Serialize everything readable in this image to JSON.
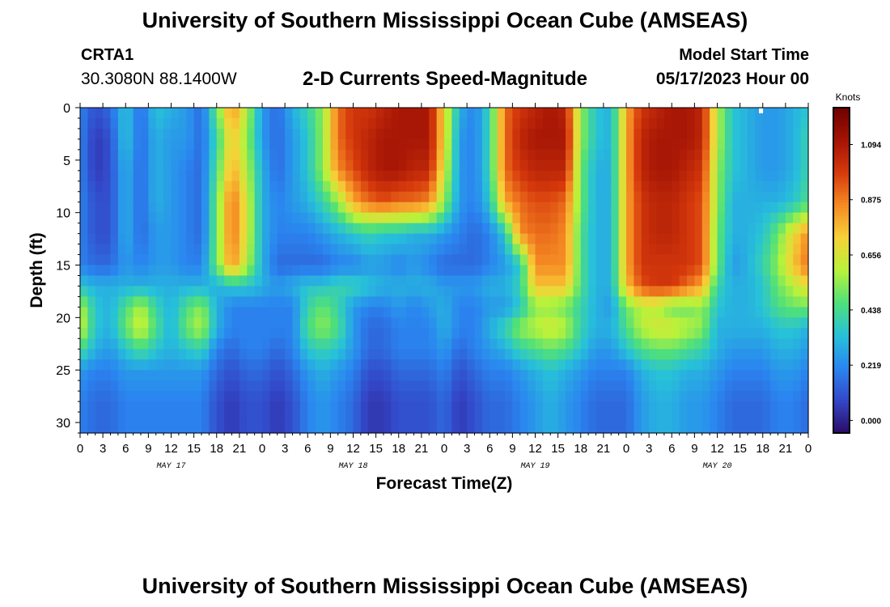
{
  "header": {
    "title": "University of Southern Mississippi Ocean Cube (AMSEAS)",
    "station_id": "CRTA1",
    "station_coords": "30.3080N  88.1400W",
    "plot_title": "2-D Currents Speed-Magnitude",
    "model_start_label": "Model Start Time",
    "model_start_value": "05/17/2023 Hour 00"
  },
  "footer": {
    "title": "University of Southern Mississippi Ocean Cube (AMSEAS)"
  },
  "chart_data": {
    "type": "heatmap",
    "title": "2-D Currents Speed-Magnitude",
    "xlabel": "Forecast Time(Z)",
    "ylabel": "Depth (ft)",
    "x_tick_labels": [
      "0",
      "3",
      "6",
      "9",
      "12",
      "15",
      "18",
      "21",
      "0",
      "3",
      "6",
      "9",
      "12",
      "15",
      "18",
      "21",
      "0",
      "3",
      "6",
      "9",
      "12",
      "15",
      "18",
      "21",
      "0",
      "3",
      "6",
      "9",
      "12",
      "15",
      "18",
      "21",
      "0"
    ],
    "x_day_labels": [
      "MAY 17",
      "MAY 18",
      "MAY 19",
      "MAY 20"
    ],
    "xlim_hours": [
      0,
      96
    ],
    "ylim": [
      0,
      31
    ],
    "y_ticks": [
      0,
      5,
      10,
      15,
      20,
      25,
      30
    ],
    "y_inverted": true,
    "colorbar": {
      "label": "Knots",
      "ticks": [
        "1.094",
        "0.875",
        "0.656",
        "0.438",
        "0.219",
        "0.000"
      ],
      "tick_values": [
        1.094,
        0.875,
        0.656,
        0.438,
        0.219,
        0.0
      ],
      "range": [
        -0.05,
        1.24
      ],
      "colors": [
        "#2a0c66",
        "#3347c8",
        "#2a86f0",
        "#27c1d9",
        "#4fe07a",
        "#b8f23a",
        "#f6d238",
        "#f58a24",
        "#d63a0c",
        "#a41405",
        "#6e0000"
      ]
    },
    "depths_ft": [
      0,
      3,
      6,
      9,
      12,
      15,
      17,
      19,
      21,
      23,
      25,
      28,
      31
    ],
    "times_hours": [
      0,
      2,
      4,
      6,
      8,
      10,
      12,
      14,
      16,
      18,
      20,
      22,
      24,
      26,
      28,
      30,
      32,
      34,
      36,
      38,
      40,
      42,
      44,
      46,
      48,
      50,
      52,
      54,
      56,
      58,
      60,
      62,
      64,
      66,
      68,
      70,
      72,
      74,
      76,
      78,
      80,
      82,
      84,
      86,
      88,
      90,
      92,
      94,
      96
    ],
    "speed_knots": [
      [
        0.2,
        0.1,
        0.15,
        0.35,
        0.15,
        0.35,
        0.3,
        0.25,
        0.15,
        0.5,
        0.85,
        0.6,
        0.25,
        0.15,
        0.3,
        0.4,
        0.55,
        0.9,
        1.0,
        1.0,
        1.05,
        1.1,
        1.1,
        1.1,
        0.7,
        0.3,
        0.2,
        0.4,
        0.9,
        1.0,
        1.05,
        1.1,
        1.05,
        0.55,
        0.35,
        0.3,
        0.8,
        1.0,
        1.05,
        1.1,
        1.1,
        1.05,
        0.6,
        0.35,
        0.3,
        0.25,
        0.25,
        0.3,
        0.35
      ],
      [
        0.2,
        0.05,
        0.1,
        0.35,
        0.15,
        0.3,
        0.25,
        0.25,
        0.15,
        0.4,
        0.75,
        0.55,
        0.25,
        0.15,
        0.25,
        0.35,
        0.55,
        0.9,
        1.0,
        1.05,
        1.1,
        1.1,
        1.1,
        1.1,
        0.7,
        0.25,
        0.2,
        0.4,
        0.9,
        1.05,
        1.1,
        1.1,
        1.1,
        0.55,
        0.35,
        0.3,
        0.8,
        1.05,
        1.1,
        1.1,
        1.1,
        1.05,
        0.6,
        0.35,
        0.3,
        0.25,
        0.25,
        0.3,
        0.4
      ],
      [
        0.2,
        0.05,
        0.1,
        0.3,
        0.15,
        0.3,
        0.25,
        0.2,
        0.15,
        0.45,
        0.8,
        0.6,
        0.3,
        0.15,
        0.25,
        0.35,
        0.55,
        0.85,
        0.95,
        1.05,
        1.1,
        1.1,
        1.05,
        1.05,
        0.65,
        0.25,
        0.2,
        0.4,
        0.9,
        1.0,
        1.05,
        1.05,
        1.05,
        0.5,
        0.3,
        0.3,
        0.8,
        1.05,
        1.1,
        1.1,
        1.05,
        1.0,
        0.55,
        0.35,
        0.3,
        0.25,
        0.25,
        0.3,
        0.4
      ],
      [
        0.2,
        0.1,
        0.1,
        0.3,
        0.15,
        0.3,
        0.25,
        0.2,
        0.15,
        0.5,
        0.9,
        0.65,
        0.3,
        0.2,
        0.25,
        0.3,
        0.4,
        0.55,
        0.8,
        0.9,
        0.95,
        0.9,
        0.9,
        0.85,
        0.55,
        0.25,
        0.2,
        0.35,
        0.8,
        0.9,
        0.95,
        0.95,
        0.9,
        0.5,
        0.3,
        0.3,
        0.8,
        1.0,
        1.05,
        1.05,
        1.0,
        0.95,
        0.55,
        0.3,
        0.3,
        0.3,
        0.3,
        0.35,
        0.45
      ],
      [
        0.2,
        0.1,
        0.1,
        0.3,
        0.15,
        0.25,
        0.25,
        0.2,
        0.15,
        0.5,
        0.9,
        0.65,
        0.3,
        0.2,
        0.2,
        0.2,
        0.25,
        0.3,
        0.35,
        0.4,
        0.35,
        0.35,
        0.3,
        0.3,
        0.25,
        0.2,
        0.15,
        0.2,
        0.35,
        0.85,
        0.9,
        0.9,
        0.85,
        0.45,
        0.3,
        0.3,
        0.8,
        1.0,
        1.05,
        1.05,
        1.0,
        0.95,
        0.5,
        0.3,
        0.3,
        0.35,
        0.5,
        0.7,
        0.85
      ],
      [
        0.2,
        0.15,
        0.15,
        0.25,
        0.2,
        0.25,
        0.25,
        0.2,
        0.2,
        0.5,
        0.85,
        0.6,
        0.3,
        0.15,
        0.15,
        0.15,
        0.15,
        0.2,
        0.2,
        0.25,
        0.25,
        0.2,
        0.25,
        0.2,
        0.15,
        0.15,
        0.15,
        0.2,
        0.25,
        0.35,
        0.85,
        0.85,
        0.85,
        0.45,
        0.3,
        0.3,
        0.8,
        1.0,
        1.0,
        1.0,
        1.0,
        0.95,
        0.5,
        0.25,
        0.3,
        0.4,
        0.55,
        0.75,
        0.9
      ],
      [
        0.35,
        0.3,
        0.3,
        0.3,
        0.3,
        0.3,
        0.3,
        0.3,
        0.3,
        0.3,
        0.35,
        0.35,
        0.3,
        0.25,
        0.3,
        0.35,
        0.35,
        0.4,
        0.4,
        0.35,
        0.3,
        0.3,
        0.3,
        0.3,
        0.25,
        0.25,
        0.25,
        0.3,
        0.3,
        0.4,
        0.75,
        0.75,
        0.75,
        0.45,
        0.3,
        0.3,
        0.75,
        0.95,
        1.0,
        1.0,
        0.9,
        0.8,
        0.4,
        0.3,
        0.3,
        0.35,
        0.5,
        0.6,
        0.7
      ],
      [
        0.6,
        0.35,
        0.3,
        0.45,
        0.6,
        0.4,
        0.3,
        0.45,
        0.55,
        0.3,
        0.2,
        0.2,
        0.2,
        0.2,
        0.2,
        0.4,
        0.5,
        0.4,
        0.25,
        0.2,
        0.2,
        0.25,
        0.2,
        0.25,
        0.3,
        0.2,
        0.2,
        0.25,
        0.25,
        0.35,
        0.55,
        0.55,
        0.5,
        0.4,
        0.3,
        0.25,
        0.5,
        0.6,
        0.6,
        0.5,
        0.5,
        0.55,
        0.35,
        0.3,
        0.3,
        0.35,
        0.45,
        0.5,
        0.5
      ],
      [
        0.65,
        0.35,
        0.3,
        0.5,
        0.65,
        0.45,
        0.3,
        0.5,
        0.6,
        0.3,
        0.2,
        0.2,
        0.2,
        0.2,
        0.2,
        0.45,
        0.55,
        0.45,
        0.25,
        0.15,
        0.15,
        0.2,
        0.2,
        0.2,
        0.3,
        0.2,
        0.2,
        0.3,
        0.4,
        0.55,
        0.6,
        0.65,
        0.6,
        0.4,
        0.3,
        0.3,
        0.45,
        0.6,
        0.65,
        0.65,
        0.6,
        0.55,
        0.3,
        0.3,
        0.3,
        0.3,
        0.35,
        0.35,
        0.3
      ],
      [
        0.45,
        0.3,
        0.25,
        0.35,
        0.45,
        0.35,
        0.3,
        0.35,
        0.4,
        0.2,
        0.15,
        0.2,
        0.2,
        0.15,
        0.2,
        0.35,
        0.4,
        0.35,
        0.25,
        0.15,
        0.15,
        0.2,
        0.2,
        0.2,
        0.25,
        0.15,
        0.2,
        0.25,
        0.3,
        0.4,
        0.45,
        0.5,
        0.45,
        0.35,
        0.25,
        0.25,
        0.35,
        0.45,
        0.5,
        0.5,
        0.45,
        0.4,
        0.3,
        0.25,
        0.25,
        0.25,
        0.3,
        0.3,
        0.25
      ],
      [
        0.25,
        0.2,
        0.2,
        0.25,
        0.25,
        0.25,
        0.25,
        0.25,
        0.25,
        0.15,
        0.1,
        0.15,
        0.15,
        0.1,
        0.15,
        0.25,
        0.3,
        0.25,
        0.2,
        0.1,
        0.1,
        0.15,
        0.15,
        0.15,
        0.2,
        0.1,
        0.15,
        0.2,
        0.2,
        0.25,
        0.3,
        0.35,
        0.3,
        0.25,
        0.2,
        0.2,
        0.2,
        0.3,
        0.35,
        0.35,
        0.3,
        0.3,
        0.25,
        0.2,
        0.2,
        0.2,
        0.25,
        0.25,
        0.2
      ],
      [
        0.2,
        0.15,
        0.15,
        0.2,
        0.2,
        0.2,
        0.2,
        0.2,
        0.2,
        0.1,
        0.05,
        0.1,
        0.1,
        0.05,
        0.1,
        0.2,
        0.25,
        0.2,
        0.15,
        0.05,
        0.05,
        0.1,
        0.1,
        0.1,
        0.15,
        0.05,
        0.1,
        0.15,
        0.15,
        0.2,
        0.25,
        0.3,
        0.25,
        0.2,
        0.15,
        0.15,
        0.15,
        0.25,
        0.3,
        0.3,
        0.25,
        0.25,
        0.2,
        0.15,
        0.15,
        0.15,
        0.2,
        0.2,
        0.15
      ],
      [
        0.2,
        0.15,
        0.15,
        0.2,
        0.2,
        0.2,
        0.2,
        0.2,
        0.2,
        0.1,
        0.05,
        0.1,
        0.1,
        0.05,
        0.1,
        0.2,
        0.25,
        0.2,
        0.15,
        0.05,
        0.05,
        0.1,
        0.1,
        0.1,
        0.15,
        0.05,
        0.1,
        0.15,
        0.15,
        0.2,
        0.25,
        0.3,
        0.25,
        0.2,
        0.15,
        0.15,
        0.15,
        0.25,
        0.3,
        0.3,
        0.25,
        0.25,
        0.2,
        0.15,
        0.15,
        0.15,
        0.2,
        0.2,
        0.15
      ]
    ]
  }
}
